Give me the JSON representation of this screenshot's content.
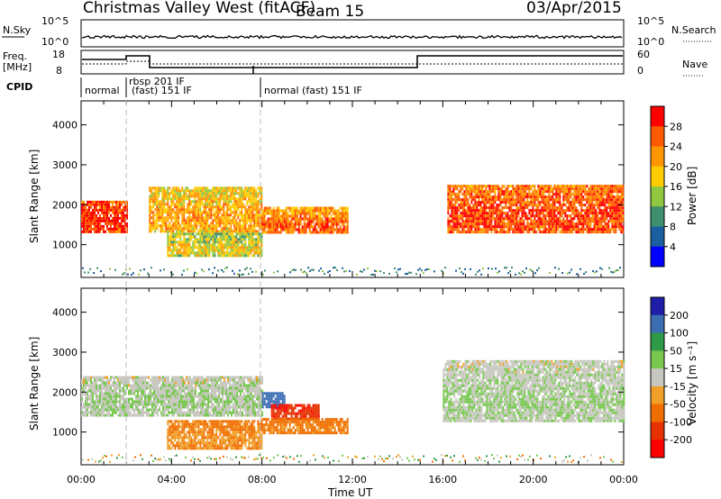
{
  "header": {
    "station": "Christmas Valley West (fitACF)",
    "beam": "Beam 15",
    "date": "03/Apr/2015"
  },
  "top_panels": {
    "nsky_label": "N.Sky",
    "nsky_ticks": [
      "10^5",
      "10^0"
    ],
    "nsearch_label": "N.Search",
    "nsearch_ticks": [
      "10^5",
      "10^0"
    ],
    "freq_label": "Freq.",
    "freq_unit": "[MHz]",
    "freq_ticks": [
      "18",
      "8"
    ],
    "nave_label": "Nave",
    "nave_ticks": [
      "60",
      "0"
    ],
    "cpid_label": "CPID",
    "cpid_segments": [
      "normal",
      "rbsp 201 IF",
      "(fast) 151 IF",
      "normal (fast) 151 IF"
    ]
  },
  "axes": {
    "xlabel": "Time UT",
    "ylabel": "Slant Range [km]",
    "x_ticks": [
      "00:00",
      "04:00",
      "08:00",
      "12:00",
      "16:00",
      "20:00",
      "00:00"
    ],
    "y_ticks": [
      "1000",
      "2000",
      "3000",
      "4000"
    ]
  },
  "power_colorbar": {
    "label": "Power [dB]",
    "ticks": [
      "28",
      "24",
      "20",
      "16",
      "12",
      "8",
      "4"
    ],
    "colors": [
      "#ff0000",
      "#ff5a00",
      "#ff9600",
      "#ffcc00",
      "#8fc840",
      "#3e8f6e",
      "#1b5fa0",
      "#0000ff"
    ]
  },
  "velocity_colorbar": {
    "label": "Velocity [m s⁻¹]",
    "ticks": [
      "200",
      "100",
      "50",
      "15",
      "-15",
      "-50",
      "-100",
      "-200"
    ],
    "colors": [
      "#1e1ea8",
      "#3c6eb4",
      "#2e9a48",
      "#78c850",
      "#c8c8c0",
      "#f0a028",
      "#f06e00",
      "#e63200",
      "#ff0000"
    ]
  },
  "chart_data": [
    {
      "type": "heatmap",
      "title": "",
      "xlabel": "Time UT",
      "ylabel": "Slant Range [km]",
      "xlim": [
        0,
        24
      ],
      "ylim": [
        180,
        4600
      ],
      "colorbar_label": "Power [dB]",
      "colorbar_range": [
        0,
        32
      ],
      "regions": [
        {
          "t": [
            0.0,
            2.0
          ],
          "range": [
            1350,
            2100
          ],
          "value_db": 26
        },
        {
          "t": [
            3.0,
            8.0
          ],
          "range": [
            1300,
            2450
          ],
          "value_db": 18
        },
        {
          "t": [
            3.8,
            8.0
          ],
          "range": [
            700,
            1300
          ],
          "value_db": 14
        },
        {
          "t": [
            8.0,
            11.8
          ],
          "range": [
            1300,
            1950
          ],
          "value_db": 22
        },
        {
          "t": [
            16.2,
            24.0
          ],
          "range": [
            1300,
            2500
          ],
          "value_db": 24
        }
      ]
    },
    {
      "type": "heatmap",
      "title": "",
      "xlabel": "Time UT",
      "ylabel": "Slant Range [km]",
      "xlim": [
        0,
        24
      ],
      "ylim": [
        180,
        4600
      ],
      "colorbar_label": "Velocity [m s⁻¹]",
      "colorbar_range": [
        -250,
        250
      ],
      "regions": [
        {
          "t": [
            0.0,
            8.0
          ],
          "range": [
            1450,
            2400
          ],
          "value_ms": 0
        },
        {
          "t": [
            3.8,
            8.0
          ],
          "range": [
            600,
            1300
          ],
          "value_ms": -60
        },
        {
          "t": [
            8.0,
            9.0
          ],
          "range": [
            1600,
            2000
          ],
          "value_ms": 150
        },
        {
          "t": [
            8.4,
            10.5
          ],
          "range": [
            1300,
            1700
          ],
          "value_ms": -200
        },
        {
          "t": [
            8.0,
            11.8
          ],
          "range": [
            1000,
            1350
          ],
          "value_ms": -70
        },
        {
          "t": [
            16.0,
            24.0
          ],
          "range": [
            1300,
            2800
          ],
          "value_ms": 0
        }
      ]
    }
  ]
}
